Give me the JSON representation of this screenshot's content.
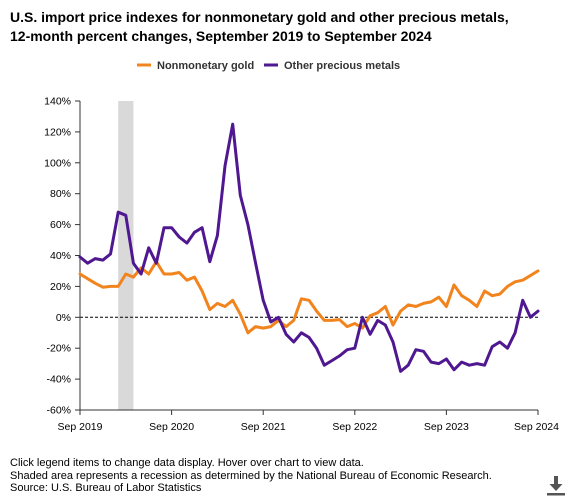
{
  "title": {
    "line1": "U.S. import price indexes for nonmonetary gold and other precious metals,",
    "line2": "12-month percent changes, September 2019 to September 2024"
  },
  "notes": {
    "line1": "Click legend items to change data display. Hover over chart to view data.",
    "line2": "Shaded area represents a recession as determined by the National Bureau of Economic Research.",
    "line3": "Source: U.S. Bureau of Labor Statistics"
  },
  "chart_data": {
    "type": "line",
    "title": "U.S. import price indexes for nonmonetary gold and other precious metals, 12-month percent changes, September 2019 to September 2024",
    "x_start": "2019-09",
    "x_end": "2024-09",
    "xticks": [
      {
        "date": "2019-09",
        "label": "Sep 2019"
      },
      {
        "date": "2020-09",
        "label": "Sep 2020"
      },
      {
        "date": "2021-09",
        "label": "Sep 2021"
      },
      {
        "date": "2022-09",
        "label": "Sep 2022"
      },
      {
        "date": "2023-09",
        "label": "Sep 2023"
      },
      {
        "date": "2024-09",
        "label": "Sep 2024"
      }
    ],
    "ylim": [
      -60,
      140
    ],
    "yticks": [
      {
        "value": -60,
        "label": "-60%"
      },
      {
        "value": -40,
        "label": "-40%"
      },
      {
        "value": -20,
        "label": "-20%"
      },
      {
        "value": 0,
        "label": "0%"
      },
      {
        "value": 20,
        "label": "20%"
      },
      {
        "value": 40,
        "label": "40%"
      },
      {
        "value": 60,
        "label": "60%"
      },
      {
        "value": 80,
        "label": "80%"
      },
      {
        "value": 100,
        "label": "100%"
      },
      {
        "value": 120,
        "label": "120%"
      },
      {
        "value": 140,
        "label": "140%"
      }
    ],
    "recession": {
      "start": "2020-02",
      "end": "2020-04"
    },
    "legend_position": "top",
    "series": [
      {
        "name": "Nonmonetary gold",
        "color": "#f2841e",
        "values": [
          {
            "date": "2019-09",
            "y": 28
          },
          {
            "date": "2019-10",
            "y": 25
          },
          {
            "date": "2019-11",
            "y": 22
          },
          {
            "date": "2019-12",
            "y": 19.5
          },
          {
            "date": "2020-01",
            "y": 20
          },
          {
            "date": "2020-02",
            "y": 20
          },
          {
            "date": "2020-03",
            "y": 28
          },
          {
            "date": "2020-04",
            "y": 26
          },
          {
            "date": "2020-05",
            "y": 32
          },
          {
            "date": "2020-06",
            "y": 28
          },
          {
            "date": "2020-07",
            "y": 36
          },
          {
            "date": "2020-08",
            "y": 28
          },
          {
            "date": "2020-09",
            "y": 28
          },
          {
            "date": "2020-10",
            "y": 29
          },
          {
            "date": "2020-11",
            "y": 24
          },
          {
            "date": "2020-12",
            "y": 26
          },
          {
            "date": "2021-01",
            "y": 17
          },
          {
            "date": "2021-02",
            "y": 5
          },
          {
            "date": "2021-03",
            "y": 9
          },
          {
            "date": "2021-04",
            "y": 7
          },
          {
            "date": "2021-05",
            "y": 11
          },
          {
            "date": "2021-06",
            "y": 2
          },
          {
            "date": "2021-07",
            "y": -10
          },
          {
            "date": "2021-08",
            "y": -6
          },
          {
            "date": "2021-09",
            "y": -7
          },
          {
            "date": "2021-10",
            "y": -6
          },
          {
            "date": "2021-11",
            "y": -2
          },
          {
            "date": "2021-12",
            "y": -6
          },
          {
            "date": "2022-01",
            "y": -2
          },
          {
            "date": "2022-02",
            "y": 12
          },
          {
            "date": "2022-03",
            "y": 11
          },
          {
            "date": "2022-04",
            "y": 4
          },
          {
            "date": "2022-05",
            "y": -2
          },
          {
            "date": "2022-06",
            "y": -2
          },
          {
            "date": "2022-07",
            "y": -1.5
          },
          {
            "date": "2022-08",
            "y": -6
          },
          {
            "date": "2022-09",
            "y": -4
          },
          {
            "date": "2022-10",
            "y": -7
          },
          {
            "date": "2022-11",
            "y": 1
          },
          {
            "date": "2022-12",
            "y": 3
          },
          {
            "date": "2023-01",
            "y": 7
          },
          {
            "date": "2023-02",
            "y": -5
          },
          {
            "date": "2023-03",
            "y": 4
          },
          {
            "date": "2023-04",
            "y": 8
          },
          {
            "date": "2023-05",
            "y": 7
          },
          {
            "date": "2023-06",
            "y": 9
          },
          {
            "date": "2023-07",
            "y": 10
          },
          {
            "date": "2023-08",
            "y": 13
          },
          {
            "date": "2023-09",
            "y": 7
          },
          {
            "date": "2023-10",
            "y": 21
          },
          {
            "date": "2023-11",
            "y": 14
          },
          {
            "date": "2023-12",
            "y": 11
          },
          {
            "date": "2024-01",
            "y": 7
          },
          {
            "date": "2024-02",
            "y": 17
          },
          {
            "date": "2024-03",
            "y": 14
          },
          {
            "date": "2024-04",
            "y": 15
          },
          {
            "date": "2024-05",
            "y": 20
          },
          {
            "date": "2024-06",
            "y": 23
          },
          {
            "date": "2024-07",
            "y": 24
          },
          {
            "date": "2024-08",
            "y": 27
          },
          {
            "date": "2024-09",
            "y": 30
          }
        ]
      },
      {
        "name": "Other precious metals",
        "color": "#4f1890",
        "values": [
          {
            "date": "2019-09",
            "y": 39
          },
          {
            "date": "2019-10",
            "y": 35
          },
          {
            "date": "2019-11",
            "y": 38
          },
          {
            "date": "2019-12",
            "y": 37
          },
          {
            "date": "2020-01",
            "y": 41
          },
          {
            "date": "2020-02",
            "y": 68
          },
          {
            "date": "2020-03",
            "y": 66
          },
          {
            "date": "2020-04",
            "y": 35
          },
          {
            "date": "2020-05",
            "y": 28
          },
          {
            "date": "2020-06",
            "y": 45
          },
          {
            "date": "2020-07",
            "y": 35
          },
          {
            "date": "2020-08",
            "y": 58
          },
          {
            "date": "2020-09",
            "y": 58
          },
          {
            "date": "2020-10",
            "y": 52
          },
          {
            "date": "2020-11",
            "y": 48
          },
          {
            "date": "2020-12",
            "y": 55
          },
          {
            "date": "2021-01",
            "y": 58
          },
          {
            "date": "2021-02",
            "y": 36
          },
          {
            "date": "2021-03",
            "y": 53
          },
          {
            "date": "2021-04",
            "y": 98
          },
          {
            "date": "2021-05",
            "y": 125
          },
          {
            "date": "2021-06",
            "y": 79
          },
          {
            "date": "2021-07",
            "y": 60
          },
          {
            "date": "2021-08",
            "y": 35
          },
          {
            "date": "2021-09",
            "y": 11
          },
          {
            "date": "2021-10",
            "y": -3
          },
          {
            "date": "2021-11",
            "y": 0
          },
          {
            "date": "2021-12",
            "y": -11
          },
          {
            "date": "2022-01",
            "y": -16
          },
          {
            "date": "2022-02",
            "y": -10
          },
          {
            "date": "2022-03",
            "y": -13
          },
          {
            "date": "2022-04",
            "y": -20
          },
          {
            "date": "2022-05",
            "y": -31
          },
          {
            "date": "2022-06",
            "y": -28
          },
          {
            "date": "2022-07",
            "y": -25
          },
          {
            "date": "2022-08",
            "y": -21
          },
          {
            "date": "2022-09",
            "y": -20
          },
          {
            "date": "2022-10",
            "y": 0
          },
          {
            "date": "2022-11",
            "y": -11
          },
          {
            "date": "2022-12",
            "y": -2
          },
          {
            "date": "2023-01",
            "y": -5
          },
          {
            "date": "2023-02",
            "y": -16
          },
          {
            "date": "2023-03",
            "y": -35
          },
          {
            "date": "2023-04",
            "y": -31
          },
          {
            "date": "2023-05",
            "y": -21
          },
          {
            "date": "2023-06",
            "y": -22
          },
          {
            "date": "2023-07",
            "y": -29
          },
          {
            "date": "2023-08",
            "y": -30
          },
          {
            "date": "2023-09",
            "y": -27
          },
          {
            "date": "2023-10",
            "y": -34
          },
          {
            "date": "2023-11",
            "y": -29
          },
          {
            "date": "2023-12",
            "y": -31
          },
          {
            "date": "2024-01",
            "y": -30
          },
          {
            "date": "2024-02",
            "y": -31
          },
          {
            "date": "2024-03",
            "y": -19
          },
          {
            "date": "2024-04",
            "y": -16
          },
          {
            "date": "2024-05",
            "y": -20
          },
          {
            "date": "2024-06",
            "y": -10
          },
          {
            "date": "2024-07",
            "y": 11
          },
          {
            "date": "2024-08",
            "y": 0
          },
          {
            "date": "2024-09",
            "y": 4
          }
        ]
      }
    ]
  }
}
